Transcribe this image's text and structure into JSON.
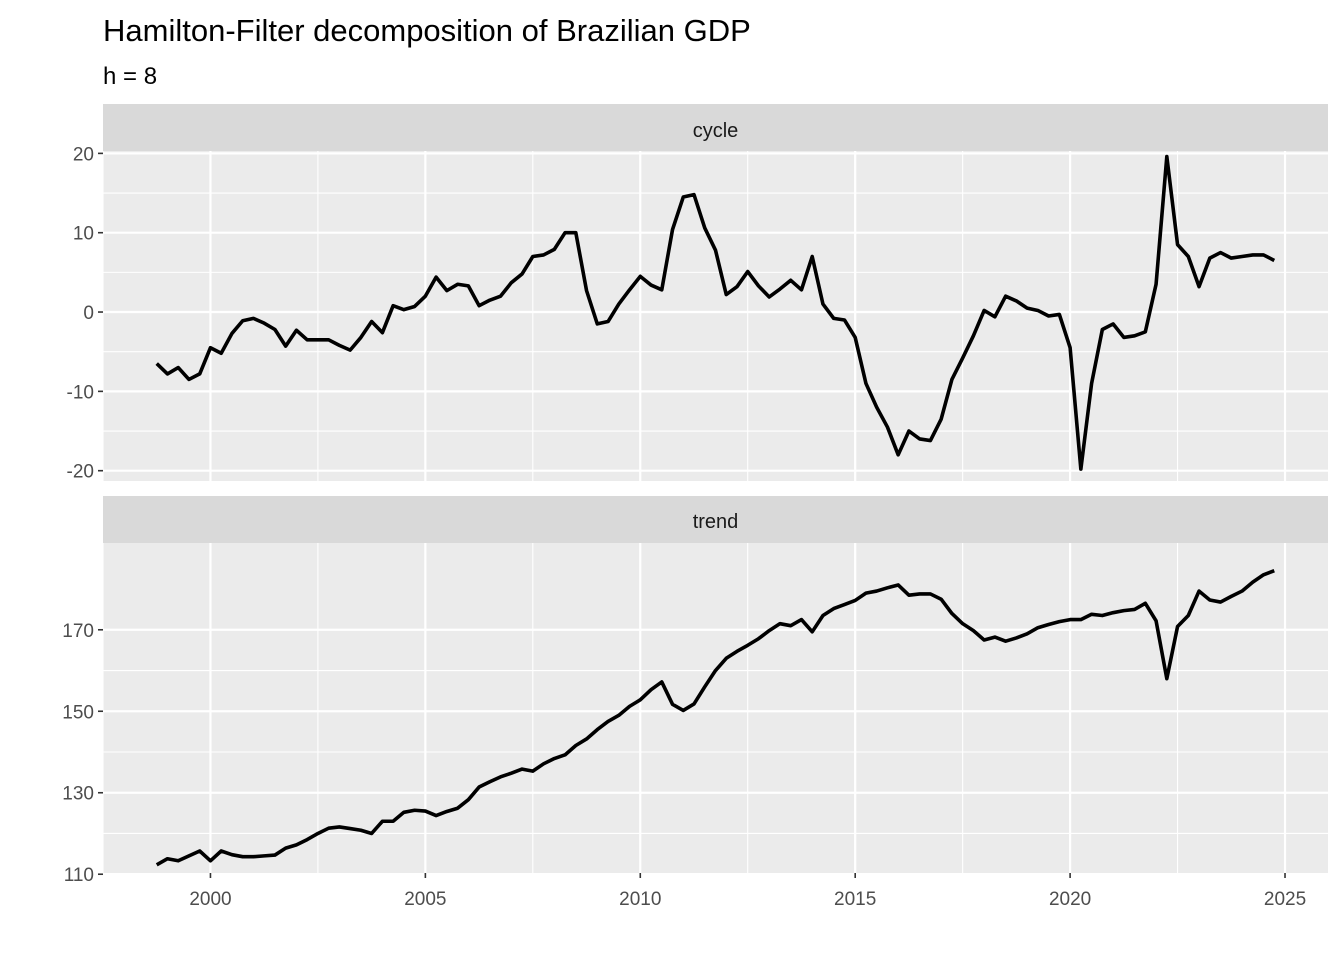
{
  "chart_data": {
    "type": "line",
    "title": "Hamilton-Filter decomposition of Brazilian GDP",
    "subtitle": "h = 8",
    "facet": "vertical, free y scales, shared x axis",
    "x_axis": {
      "range": [
        1997.5,
        2026.0
      ],
      "ticks": [
        2000,
        2005,
        2010,
        2015,
        2020,
        2025
      ],
      "tick_labels": [
        "2000",
        "2005",
        "2010",
        "2015",
        "2020",
        "2025"
      ]
    },
    "grid": true,
    "colors": {
      "line": "#000000",
      "panel": "#ebebeb",
      "strip": "#d9d9d9"
    },
    "x": [
      1998.75,
      1999.0,
      1999.25,
      1999.5,
      1999.75,
      2000.0,
      2000.25,
      2000.5,
      2000.75,
      2001.0,
      2001.25,
      2001.5,
      2001.75,
      2002.0,
      2002.25,
      2002.5,
      2002.75,
      2003.0,
      2003.25,
      2003.5,
      2003.75,
      2004.0,
      2004.25,
      2004.5,
      2004.75,
      2005.0,
      2005.25,
      2005.5,
      2005.75,
      2006.0,
      2006.25,
      2006.5,
      2006.75,
      2007.0,
      2007.25,
      2007.5,
      2007.75,
      2008.0,
      2008.25,
      2008.5,
      2008.75,
      2009.0,
      2009.25,
      2009.5,
      2009.75,
      2010.0,
      2010.25,
      2010.5,
      2010.75,
      2011.0,
      2011.25,
      2011.5,
      2011.75,
      2012.0,
      2012.25,
      2012.5,
      2012.75,
      2013.0,
      2013.25,
      2013.5,
      2013.75,
      2014.0,
      2014.25,
      2014.5,
      2014.75,
      2015.0,
      2015.25,
      2015.5,
      2015.75,
      2016.0,
      2016.25,
      2016.5,
      2016.75,
      2017.0,
      2017.25,
      2017.5,
      2017.75,
      2018.0,
      2018.25,
      2018.5,
      2018.75,
      2019.0,
      2019.25,
      2019.5,
      2019.75,
      2020.0,
      2020.25,
      2020.5,
      2020.75,
      2021.0,
      2021.25,
      2021.5,
      2021.75,
      2022.0,
      2022.25,
      2022.5,
      2022.75,
      2023.0,
      2023.25,
      2023.5,
      2023.75,
      2024.0,
      2024.25,
      2024.5,
      2024.75
    ],
    "panels": [
      {
        "name": "cycle",
        "y_ticks": [
          -20,
          -10,
          0,
          10,
          20
        ],
        "y_tick_labels": [
          "-20",
          "-10",
          "0",
          "10",
          "20"
        ],
        "ylim": [
          -21.3,
          20.3
        ],
        "values": [
          -6.5,
          -7.8,
          -7.0,
          -8.5,
          -7.8,
          -4.5,
          -5.2,
          -2.7,
          -1.1,
          -0.8,
          -1.4,
          -2.2,
          -4.3,
          -2.3,
          -3.5,
          -3.5,
          -3.5,
          -4.2,
          -4.8,
          -3.2,
          -1.2,
          -2.6,
          0.8,
          0.3,
          0.7,
          2.0,
          4.4,
          2.7,
          3.5,
          3.3,
          0.8,
          1.5,
          2.0,
          3.7,
          4.8,
          7.0,
          7.2,
          7.9,
          10.0,
          10.0,
          2.7,
          -1.5,
          -1.2,
          1.0,
          2.8,
          4.5,
          3.4,
          2.8,
          10.4,
          14.5,
          14.8,
          10.6,
          7.8,
          2.2,
          3.2,
          5.1,
          3.3,
          1.9,
          2.9,
          4.0,
          2.8,
          7.0,
          1.0,
          -0.8,
          -1.0,
          -3.2,
          -9.0,
          -12.0,
          -14.5,
          -18.0,
          -15.0,
          -16.0,
          -16.2,
          -13.5,
          -8.5,
          -5.8,
          -3.0,
          0.2,
          -0.6,
          2.0,
          1.4,
          0.5,
          0.2,
          -0.5,
          -0.3,
          -4.5,
          -19.8,
          -9.0,
          -2.2,
          -1.5,
          -3.2,
          -3.0,
          -2.5,
          3.5,
          19.6,
          8.5,
          7.0,
          3.2,
          6.8,
          7.5,
          6.8,
          7.0,
          7.2,
          7.2,
          6.5
        ]
      },
      {
        "name": "trend",
        "y_ticks": [
          110,
          130,
          150,
          170
        ],
        "y_tick_labels": [
          "110",
          "130",
          "150",
          "170"
        ],
        "ylim": [
          110.3,
          191.3
        ],
        "values": [
          112.3,
          113.8,
          113.3,
          114.5,
          115.7,
          113.3,
          115.7,
          114.8,
          114.3,
          114.3,
          114.5,
          114.7,
          116.4,
          117.2,
          118.5,
          120.0,
          121.3,
          121.6,
          121.2,
          120.8,
          120.0,
          123.0,
          123.0,
          125.2,
          125.7,
          125.5,
          124.4,
          125.4,
          126.2,
          128.3,
          131.4,
          132.7,
          133.9,
          134.8,
          135.8,
          135.3,
          137.1,
          138.4,
          139.3,
          141.6,
          143.2,
          145.5,
          147.5,
          149.0,
          151.2,
          152.8,
          155.3,
          157.2,
          151.7,
          150.2,
          151.8,
          156.0,
          160.0,
          163.0,
          164.7,
          166.2,
          167.8,
          169.8,
          171.5,
          171.0,
          172.5,
          169.5,
          173.5,
          175.2,
          176.2,
          177.2,
          179.0,
          179.5,
          180.3,
          181.0,
          178.5,
          178.8,
          178.8,
          177.5,
          174.0,
          171.5,
          169.8,
          167.5,
          168.2,
          167.2,
          168.0,
          169.0,
          170.5,
          171.3,
          172.0,
          172.5,
          172.5,
          173.8,
          173.5,
          174.2,
          174.7,
          175.0,
          176.5,
          172.2,
          158.0,
          170.8,
          173.5,
          179.5,
          177.3,
          176.8,
          178.2,
          179.5,
          181.7,
          183.5,
          184.5
        ]
      }
    ]
  }
}
